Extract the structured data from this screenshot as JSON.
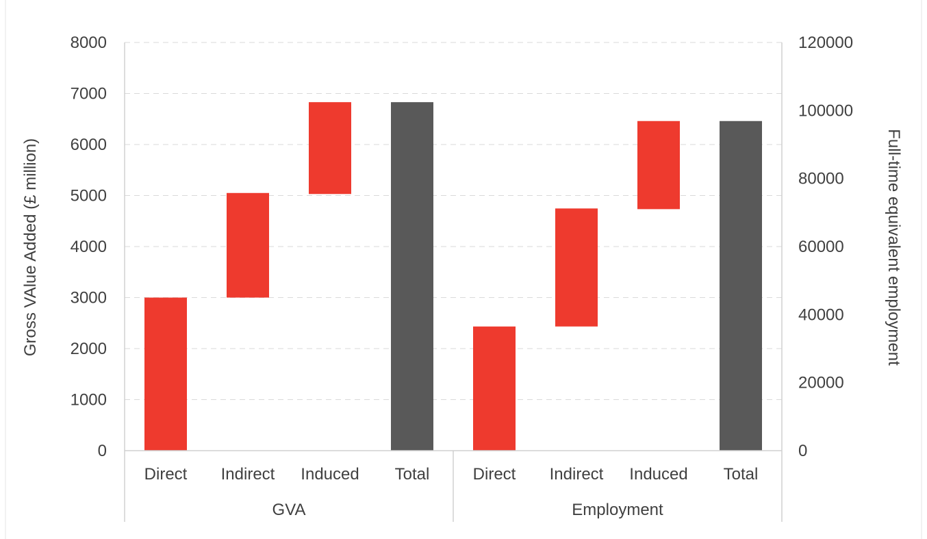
{
  "chart_data": {
    "type": "bar",
    "subtype": "waterfall",
    "title": "",
    "groups": [
      {
        "label": "GVA",
        "axis": "left",
        "categories": [
          "Direct",
          "Indirect",
          "Induced",
          "Total"
        ],
        "segments": [
          {
            "category": "Direct",
            "start": 0,
            "end": 3000,
            "kind": "increase"
          },
          {
            "category": "Indirect",
            "start": 3000,
            "end": 5050,
            "kind": "increase"
          },
          {
            "category": "Induced",
            "start": 5030,
            "end": 6830,
            "kind": "increase"
          },
          {
            "category": "Total",
            "start": 0,
            "end": 6830,
            "kind": "total"
          }
        ]
      },
      {
        "label": "Employment",
        "axis": "right",
        "categories": [
          "Direct",
          "Indirect",
          "Induced",
          "Total"
        ],
        "segments": [
          {
            "category": "Direct",
            "start": 0,
            "end": 36500,
            "kind": "increase"
          },
          {
            "category": "Indirect",
            "start": 36500,
            "end": 71200,
            "kind": "increase"
          },
          {
            "category": "Induced",
            "start": 71000,
            "end": 96900,
            "kind": "increase"
          },
          {
            "category": "Total",
            "start": 0,
            "end": 96900,
            "kind": "total"
          }
        ]
      }
    ],
    "y_left": {
      "label": "Gross VAlue  Added  (£ million)",
      "min": 0,
      "max": 8000,
      "ticks": [
        0,
        1000,
        2000,
        3000,
        4000,
        5000,
        6000,
        7000,
        8000
      ]
    },
    "y_right": {
      "label": "Full-time  equivalent employment",
      "min": 0,
      "max": 120000,
      "ticks": [
        0,
        20000,
        40000,
        60000,
        80000,
        100000,
        120000
      ]
    },
    "grid": true,
    "legend": "none",
    "colors": {
      "increase": "#ee3a2e",
      "total": "#595959"
    }
  }
}
